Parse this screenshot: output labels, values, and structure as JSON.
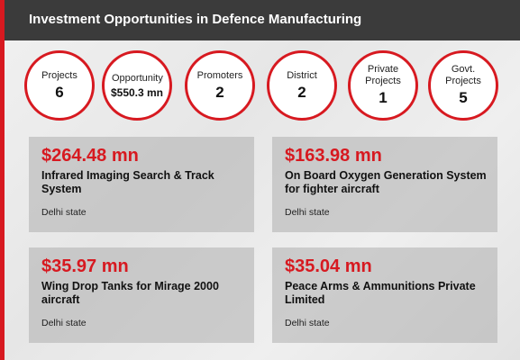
{
  "header": {
    "title": "Investment Opportunities in Defence Manufacturing"
  },
  "stats": [
    {
      "label": "Projects",
      "value": 6
    },
    {
      "label": "Opportunity",
      "value": "$550.3 mn"
    },
    {
      "label": "Promoters",
      "value": 2
    },
    {
      "label": "District",
      "value": 2
    },
    {
      "label": "Private Projects",
      "value": 1
    },
    {
      "label": "Govt. Projects",
      "value": 5
    }
  ],
  "cards": [
    {
      "amount": "$264.48 mn",
      "title": "Infrared Imaging Search & Track System",
      "location": "Delhi state"
    },
    {
      "amount": "$163.98 mn",
      "title": "On Board Oxygen Generation System for fighter aircraft",
      "location": "Delhi state"
    },
    {
      "amount": "$35.97 mn",
      "title": "Wing Drop Tanks for Mirage 2000 aircraft",
      "location": "Delhi state"
    },
    {
      "amount": "$35.04 mn",
      "title": "Peace Arms & Ammunitions Private Limited",
      "location": "Delhi state"
    }
  ]
}
